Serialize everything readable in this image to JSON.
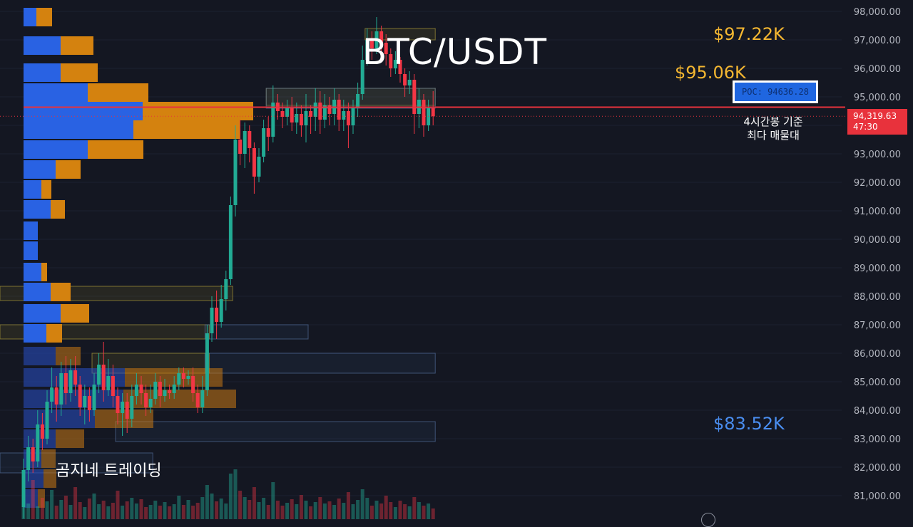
{
  "chart_data": {
    "type": "candlestick",
    "title": "BTC/USDT",
    "y_axis": {
      "ticks": [
        "98,000.00",
        "97,000.00",
        "96,000.00",
        "95,000.00",
        "94,000.00",
        "93,000.00",
        "92,000.00",
        "91,000.00",
        "90,000.00",
        "89,000.00",
        "88,000.00",
        "87,000.00",
        "86,000.00",
        "85,000.00",
        "84,000.00",
        "83,000.00",
        "82,000.00",
        "81,000.00"
      ],
      "range": [
        80300,
        98400
      ]
    },
    "current_price": {
      "value": "94,319.63",
      "countdown": "47:30",
      "level": 94319.63
    },
    "poc": {
      "label": "POC: 94636.28",
      "level": 94636.28
    },
    "annotations": {
      "level_a": {
        "label": "$97.22K",
        "level": 97220
      },
      "level_b": {
        "label": "$95.06K",
        "level": 95060
      },
      "level_c": {
        "label": "$83.52K",
        "level": 83520
      },
      "note_line1": "4시간봉 기준",
      "note_line2": "최다 매물대",
      "channel": "곰지네 트레이딩"
    },
    "candles": [
      [
        80600,
        81900,
        80200,
        82300
      ],
      [
        81900,
        82700,
        81500,
        83100
      ],
      [
        82700,
        82200,
        81800,
        83000
      ],
      [
        82200,
        83500,
        82000,
        84000
      ],
      [
        83500,
        83000,
        82600,
        83900
      ],
      [
        83000,
        84300,
        82800,
        84700
      ],
      [
        84300,
        84800,
        83900,
        85500
      ],
      [
        84800,
        84200,
        83600,
        85200
      ],
      [
        84200,
        85300,
        83800,
        85700
      ],
      [
        85300,
        84600,
        84200,
        85900
      ],
      [
        84600,
        85400,
        84300,
        85800
      ],
      [
        85400,
        84900,
        84500,
        85900
      ],
      [
        84900,
        84100,
        83800,
        85200
      ],
      [
        84100,
        84500,
        83500,
        84900
      ],
      [
        84500,
        84000,
        83600,
        84800
      ],
      [
        84000,
        84900,
        83800,
        85300
      ],
      [
        84900,
        85600,
        84600,
        86000
      ],
      [
        85600,
        84700,
        84300,
        86400
      ],
      [
        84700,
        85200,
        84500,
        85800
      ],
      [
        85200,
        84500,
        84100,
        85600
      ],
      [
        84500,
        83900,
        83500,
        84800
      ],
      [
        83900,
        84300,
        83100,
        84600
      ],
      [
        84300,
        83700,
        83200,
        84600
      ],
      [
        83700,
        84500,
        83400,
        84900
      ],
      [
        84500,
        84900,
        84200,
        85300
      ],
      [
        84900,
        84600,
        84200,
        85200
      ],
      [
        84600,
        84100,
        83800,
        84900
      ],
      [
        84100,
        84400,
        83900,
        84900
      ],
      [
        84400,
        85000,
        84200,
        85300
      ],
      [
        85000,
        84500,
        84100,
        85200
      ],
      [
        84500,
        84700,
        84300,
        85100
      ],
      [
        84700,
        84600,
        84400,
        84900
      ],
      [
        84600,
        84900,
        84400,
        85200
      ],
      [
        84900,
        85300,
        84700,
        85500
      ],
      [
        85300,
        85100,
        84800,
        85500
      ],
      [
        85100,
        85200,
        84900,
        85400
      ],
      [
        85200,
        84600,
        84300,
        85500
      ],
      [
        84600,
        84100,
        83900,
        84900
      ],
      [
        84100,
        84700,
        83900,
        85200
      ],
      [
        84700,
        86700,
        84500,
        87000
      ],
      [
        86700,
        87600,
        86400,
        88000
      ],
      [
        87600,
        87100,
        86500,
        88200
      ],
      [
        87100,
        87900,
        86900,
        88400
      ],
      [
        87900,
        88600,
        87500,
        88900
      ],
      [
        88600,
        91200,
        88400,
        91500
      ],
      [
        91200,
        93500,
        90800,
        94000
      ],
      [
        93500,
        93000,
        92600,
        94200
      ],
      [
        93000,
        93800,
        92500,
        94100
      ],
      [
        93800,
        93200,
        92700,
        94000
      ],
      [
        93200,
        92200,
        91600,
        93400
      ],
      [
        92200,
        92900,
        92000,
        93200
      ],
      [
        92900,
        93900,
        92700,
        94200
      ],
      [
        93900,
        93600,
        93100,
        94300
      ],
      [
        93600,
        94800,
        93400,
        95400
      ],
      [
        94800,
        94500,
        94200,
        95100
      ],
      [
        94500,
        94300,
        93900,
        94800
      ],
      [
        94300,
        94600,
        94000,
        94900
      ],
      [
        94600,
        94100,
        93800,
        95000
      ],
      [
        94100,
        94400,
        93700,
        94800
      ],
      [
        94400,
        94000,
        93600,
        94700
      ],
      [
        94000,
        94500,
        93400,
        95100
      ],
      [
        94500,
        94300,
        93700,
        94700
      ],
      [
        94300,
        94800,
        93800,
        95300
      ],
      [
        94800,
        94200,
        93700,
        95200
      ],
      [
        94200,
        94700,
        93900,
        95100
      ],
      [
        94700,
        94400,
        94000,
        95000
      ],
      [
        94400,
        94900,
        94000,
        95300
      ],
      [
        94900,
        94200,
        93800,
        95100
      ],
      [
        94200,
        94500,
        93800,
        94900
      ],
      [
        94500,
        94000,
        93200,
        94800
      ],
      [
        94000,
        94600,
        93700,
        94900
      ],
      [
        94600,
        95100,
        94300,
        95500
      ],
      [
        95100,
        96300,
        94900,
        96800
      ],
      [
        96300,
        97000,
        96100,
        97400
      ],
      [
        97000,
        96700,
        96300,
        97300
      ],
      [
        96700,
        97300,
        96500,
        97800
      ],
      [
        97300,
        96900,
        96500,
        97500
      ],
      [
        96900,
        96500,
        96100,
        97200
      ],
      [
        96500,
        96000,
        95700,
        96700
      ],
      [
        96000,
        96300,
        95800,
        96600
      ],
      [
        96300,
        95800,
        95500,
        96400
      ],
      [
        95800,
        95400,
        95000,
        96000
      ],
      [
        95400,
        95600,
        95100,
        95900
      ],
      [
        95600,
        94400,
        93700,
        95800
      ],
      [
        94400,
        94900,
        93900,
        95300
      ],
      [
        94900,
        94000,
        93600,
        95100
      ],
      [
        94000,
        94600,
        93800,
        94900
      ],
      [
        94600,
        94320,
        94000,
        95200
      ]
    ],
    "volume": [
      38,
      22,
      55,
      18,
      30,
      25,
      41,
      19,
      27,
      33,
      20,
      45,
      24,
      17,
      29,
      36,
      21,
      26,
      18,
      23,
      40,
      19,
      25,
      30,
      22,
      28,
      17,
      20,
      26,
      19,
      24,
      18,
      21,
      33,
      20,
      27,
      19,
      23,
      31,
      48,
      36,
      25,
      29,
      22,
      64,
      70,
      40,
      31,
      27,
      45,
      24,
      30,
      20,
      52,
      26,
      19,
      23,
      28,
      21,
      34,
      26,
      18,
      24,
      31,
      22,
      25,
      20,
      29,
      23,
      38,
      21,
      27,
      42,
      30,
      19,
      26,
      22,
      33,
      24,
      17,
      26,
      21,
      18,
      31,
      24,
      19,
      22,
      15
    ],
    "volume_profile": [
      {
        "level": 97800,
        "buy": 18,
        "sell": 22
      },
      {
        "level": 96800,
        "buy": 52,
        "sell": 46
      },
      {
        "level": 95850,
        "buy": 52,
        "sell": 52
      },
      {
        "level": 95150,
        "buy": 90,
        "sell": 85
      },
      {
        "level": 94500,
        "buy": 167,
        "sell": 155
      },
      {
        "level": 93850,
        "buy": 154,
        "sell": 149
      },
      {
        "level": 93150,
        "buy": 90,
        "sell": 78
      },
      {
        "level": 92450,
        "buy": 45,
        "sell": 35
      },
      {
        "level": 91750,
        "buy": 25,
        "sell": 14
      },
      {
        "level": 91050,
        "buy": 38,
        "sell": 20
      },
      {
        "level": 90300,
        "buy": 20,
        "sell": 0
      },
      {
        "level": 89600,
        "buy": 20,
        "sell": 0
      },
      {
        "level": 88850,
        "buy": 25,
        "sell": 8
      },
      {
        "level": 88150,
        "buy": 38,
        "sell": 28
      },
      {
        "level": 87400,
        "buy": 52,
        "sell": 40
      },
      {
        "level": 86700,
        "buy": 32,
        "sell": 22
      },
      {
        "level": 85900,
        "buy": 45,
        "sell": 35
      },
      {
        "level": 85150,
        "buy": 142,
        "sell": 137
      },
      {
        "level": 84400,
        "buy": 140,
        "sell": 158
      },
      {
        "level": 83700,
        "buy": 100,
        "sell": 82
      },
      {
        "level": 83000,
        "buy": 45,
        "sell": 40
      },
      {
        "level": 82300,
        "buy": 25,
        "sell": 20
      },
      {
        "level": 81600,
        "buy": 28,
        "sell": 18
      },
      {
        "level": 80900,
        "buy": 20,
        "sell": 10
      }
    ],
    "zones": [
      {
        "kind": "yellow",
        "from_candle": 73,
        "to_candle": 87,
        "low": 97000,
        "high": 97400
      },
      {
        "kind": "yellow",
        "from_candle": 52,
        "to_candle": 87,
        "low": 94700,
        "high": 95300
      },
      {
        "kind": "blue",
        "from_candle": 52,
        "to_candle": 87,
        "low": 94600,
        "high": 95300
      },
      {
        "kind": "yellow",
        "from_candle": -2,
        "to_candle": 44,
        "low": 87850,
        "high": 88350
      },
      {
        "kind": "yellow",
        "from_candle": -2,
        "to_candle": 39,
        "low": 86500,
        "high": 87000
      },
      {
        "kind": "blue",
        "from_candle": 39,
        "to_candle": 60,
        "low": 86500,
        "high": 87000
      },
      {
        "kind": "yellow",
        "from_candle": 15,
        "to_candle": 39,
        "low": 85300,
        "high": 86000
      },
      {
        "kind": "blue",
        "from_candle": 39,
        "to_candle": 87,
        "low": 85300,
        "high": 86000
      },
      {
        "kind": "blue",
        "from_candle": 20,
        "to_candle": 87,
        "low": 82900,
        "high": 83600
      },
      {
        "kind": "blue",
        "from_candle": -2,
        "to_candle": 27,
        "low": 81800,
        "high": 82500
      }
    ]
  }
}
